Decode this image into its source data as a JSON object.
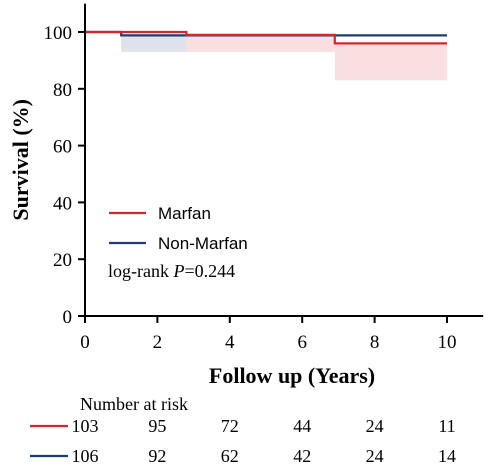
{
  "chart_data": {
    "type": "line",
    "xlabel": "Follow up (Years)",
    "ylabel": "Survival (%)",
    "xlim": [
      0,
      11
    ],
    "ylim": [
      0,
      110
    ],
    "x_ticks": [
      0,
      2,
      4,
      6,
      8,
      10
    ],
    "y_ticks": [
      0,
      20,
      40,
      60,
      80,
      100
    ],
    "grid": false,
    "legend_position": "center-left",
    "series": [
      {
        "name": "Marfan",
        "color": "#d62728",
        "steps": [
          [
            0,
            100
          ],
          [
            2.8,
            99
          ],
          [
            6.9,
            96
          ],
          [
            10,
            96
          ]
        ],
        "ci": [
          [
            2.8,
            6.9,
            93,
            99
          ],
          [
            6.9,
            10,
            83,
            96
          ]
        ]
      },
      {
        "name": "Non-Marfan",
        "color": "#1f3b73",
        "steps": [
          [
            0,
            100
          ],
          [
            1,
            98.8
          ],
          [
            10,
            98.8
          ]
        ],
        "ci": [
          [
            1,
            2.8,
            93,
            98.8
          ]
        ]
      }
    ],
    "annotation": {
      "prefix": "log-rank ",
      "italic": "P",
      "suffix": "=0.244"
    },
    "risk_table": {
      "title": "Number at risk",
      "rows": [
        {
          "color": "#d62728",
          "values": [
            "103",
            "95",
            "72",
            "44",
            "24",
            "11"
          ]
        },
        {
          "color": "#1f3b73",
          "values": [
            "106",
            "92",
            "62",
            "42",
            "24",
            "14"
          ]
        }
      ]
    }
  }
}
